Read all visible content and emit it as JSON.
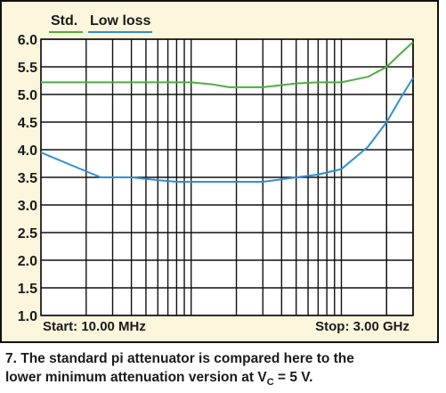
{
  "chart_data": {
    "type": "line",
    "title": "",
    "xlabel": "",
    "ylabel": "",
    "ylim": [
      1.0,
      6.0
    ],
    "yticks": [
      "6.0",
      "5.5",
      "5.0",
      "4.5",
      "4.0",
      "3.5",
      "3.0",
      "2.5",
      "2.0",
      "1.5",
      "1.0"
    ],
    "x_scale": "log",
    "grid": true,
    "legend_position": "top",
    "start_label": "Start: 10.00 MHz",
    "stop_label": "Stop: 3.00 GHz",
    "x_start_hz": 10000000,
    "x_stop_hz": 3000000000,
    "series": [
      {
        "name": "Std.",
        "color": "#4caf3f",
        "x_hz": [
          10000000,
          15000000,
          25000000,
          40000000,
          60000000,
          100000000,
          140000000,
          180000000,
          220000000,
          300000000,
          500000000,
          700000000,
          1000000000,
          1500000000,
          2000000000,
          2500000000,
          3000000000
        ],
        "values": [
          5.22,
          5.22,
          5.22,
          5.22,
          5.22,
          5.22,
          5.18,
          5.13,
          5.13,
          5.13,
          5.2,
          5.22,
          5.22,
          5.32,
          5.5,
          5.75,
          5.95
        ]
      },
      {
        "name": "Low loss",
        "color": "#2f8fd6",
        "x_hz": [
          10000000,
          15000000,
          25000000,
          40000000,
          60000000,
          80000000,
          100000000,
          150000000,
          200000000,
          300000000,
          500000000,
          700000000,
          1000000000,
          1500000000,
          2000000000,
          2500000000,
          3000000000
        ],
        "values": [
          3.95,
          3.75,
          3.5,
          3.5,
          3.45,
          3.42,
          3.42,
          3.42,
          3.42,
          3.42,
          3.5,
          3.55,
          3.65,
          4.05,
          4.5,
          4.95,
          5.3
        ]
      }
    ]
  },
  "caption": {
    "line1": "7. The standard pi attenuator is compared here to the",
    "line2_before": "lower minimum attenuation version at V",
    "line2_sub": "C",
    "line2_after": " = 5 V."
  }
}
